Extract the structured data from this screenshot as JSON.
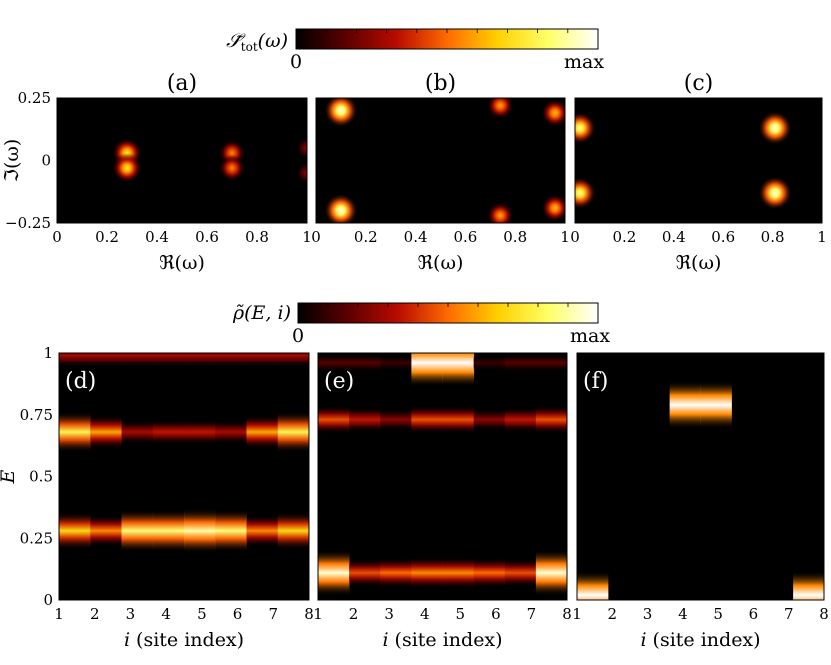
{
  "figure": {
    "colormap": [
      "#000000",
      "#5c0000",
      "#b80b00",
      "#ff6a00",
      "#ffd000",
      "#ffff66",
      "#ffffff"
    ]
  },
  "colorbars": {
    "top": {
      "label": "𝒮̃_tot(ω)",
      "label_main": "𝒮̃",
      "label_sub": "tot",
      "label_arg": "(ω)",
      "min_label": "0",
      "max_label": "max"
    },
    "bottom": {
      "label": "ρ̃(E, i)",
      "label_main": "ρ̃(E, i)",
      "min_label": "0",
      "max_label": "max"
    }
  },
  "chart_data": [
    {
      "type": "heatmap",
      "panel": "(a)",
      "xlabel": "ℜ(ω)",
      "ylabel": "ℑ(ω)",
      "xlim": [
        0,
        1
      ],
      "ylim": [
        -0.25,
        0.25
      ],
      "xticks": [
        "0",
        "0.2",
        "0.4",
        "0.6",
        "0.8",
        "1"
      ],
      "yticks": [
        "0.25",
        "0",
        "−0.25"
      ],
      "peaks": [
        {
          "x": 0.28,
          "y": 0.03,
          "intensity": 0.75
        },
        {
          "x": 0.28,
          "y": -0.03,
          "intensity": 0.75
        },
        {
          "x": 0.7,
          "y": 0.03,
          "intensity": 0.55
        },
        {
          "x": 0.7,
          "y": -0.03,
          "intensity": 0.55
        },
        {
          "x": 1.0,
          "y": 0.05,
          "intensity": 0.25
        },
        {
          "x": 1.0,
          "y": -0.05,
          "intensity": 0.25
        }
      ]
    },
    {
      "type": "heatmap",
      "panel": "(b)",
      "xlabel": "ℜ(ω)",
      "ylabel": "",
      "xlim": [
        0,
        1
      ],
      "ylim": [
        -0.25,
        0.25
      ],
      "xticks": [
        "0",
        "0.2",
        "0.4",
        "0.6",
        "0.8",
        "1"
      ],
      "yticks": [],
      "peaks": [
        {
          "x": 0.1,
          "y": 0.2,
          "intensity": 1.0
        },
        {
          "x": 0.1,
          "y": -0.2,
          "intensity": 1.0
        },
        {
          "x": 0.74,
          "y": 0.22,
          "intensity": 0.6
        },
        {
          "x": 0.74,
          "y": -0.22,
          "intensity": 0.6
        },
        {
          "x": 0.96,
          "y": 0.19,
          "intensity": 0.65
        },
        {
          "x": 0.96,
          "y": -0.19,
          "intensity": 0.65
        }
      ]
    },
    {
      "type": "heatmap",
      "panel": "(c)",
      "xlabel": "ℜ(ω)",
      "ylabel": "",
      "xlim": [
        0,
        1
      ],
      "ylim": [
        -0.25,
        0.25
      ],
      "xticks": [
        "0",
        "0.2",
        "0.4",
        "0.6",
        "0.8",
        "1"
      ],
      "yticks": [],
      "peaks": [
        {
          "x": 0.02,
          "y": 0.13,
          "intensity": 0.9
        },
        {
          "x": 0.02,
          "y": -0.13,
          "intensity": 0.9
        },
        {
          "x": 0.81,
          "y": 0.13,
          "intensity": 1.0
        },
        {
          "x": 0.81,
          "y": -0.13,
          "intensity": 1.0
        }
      ]
    },
    {
      "type": "heatmap",
      "panel": "(d)",
      "xlabel": "i (site index)",
      "ylabel": "E",
      "xlim": [
        1,
        8
      ],
      "ylim": [
        0,
        1
      ],
      "xticks": [
        "1",
        "2",
        "3",
        "4",
        "5",
        "6",
        "7",
        "8"
      ],
      "yticks": [
        "1",
        "0.75",
        "0.5",
        "0.25",
        "0"
      ],
      "lines": [
        {
          "E": 0.68,
          "intensities": [
            0.8,
            0.6,
            0.3,
            0.35,
            0.35,
            0.3,
            0.6,
            0.8
          ]
        },
        {
          "E": 0.28,
          "intensities": [
            0.7,
            0.55,
            0.85,
            0.85,
            0.9,
            0.85,
            0.55,
            0.7
          ]
        },
        {
          "E": 0.99,
          "intensities": [
            0.3,
            0.3,
            0.3,
            0.3,
            0.3,
            0.3,
            0.3,
            0.3
          ]
        }
      ]
    },
    {
      "type": "heatmap",
      "panel": "(e)",
      "xlabel": "i (site index)",
      "ylabel": "",
      "xlim": [
        1,
        8
      ],
      "ylim": [
        0,
        1
      ],
      "xticks": [
        "1",
        "2",
        "3",
        "4",
        "5",
        "6",
        "7",
        "8"
      ],
      "yticks": [],
      "lines": [
        {
          "E": 0.96,
          "intensities": [
            0.15,
            0.15,
            0.1,
            1.0,
            1.0,
            0.1,
            0.15,
            0.15
          ]
        },
        {
          "E": 0.73,
          "intensities": [
            0.45,
            0.35,
            0.25,
            0.45,
            0.45,
            0.25,
            0.35,
            0.45
          ]
        },
        {
          "E": 0.11,
          "intensities": [
            0.95,
            0.45,
            0.5,
            0.55,
            0.55,
            0.5,
            0.45,
            0.95
          ]
        }
      ]
    },
    {
      "type": "heatmap",
      "panel": "(f)",
      "xlabel": "i (site index)",
      "ylabel": "",
      "xlim": [
        1,
        8
      ],
      "ylim": [
        0,
        1
      ],
      "xticks": [
        "1",
        "2",
        "3",
        "4",
        "5",
        "6",
        "7",
        "8"
      ],
      "yticks": [],
      "lines": [
        {
          "E": 0.79,
          "intensities": [
            0.0,
            0.0,
            0.0,
            1.0,
            1.0,
            0.0,
            0.0,
            0.0
          ]
        },
        {
          "E": 0.02,
          "intensities": [
            1.0,
            0.0,
            0.0,
            0.0,
            0.0,
            0.0,
            0.0,
            1.0
          ]
        }
      ]
    }
  ]
}
